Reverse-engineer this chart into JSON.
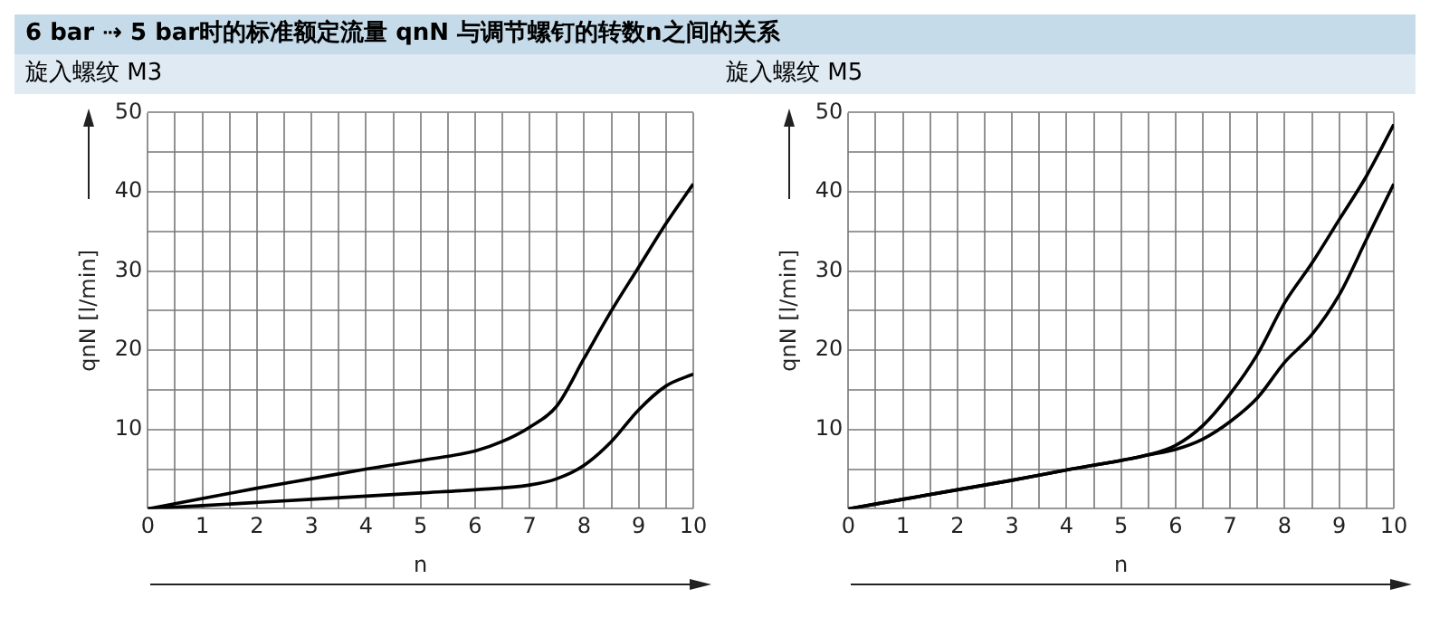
{
  "chart_data": [
    {
      "type": "line",
      "title": "6 bar ⇢ 5 bar时的标准额定流量 qnN 与调节螺钉的转数n之间的关系",
      "subtitle": "旋入螺纹 M3",
      "xlabel": "n",
      "ylabel": "qnN [l/min]",
      "grid": true,
      "legend": false,
      "marker": "none",
      "line_style": "solid",
      "xlim": [
        0,
        10
      ],
      "ylim": [
        0,
        50
      ],
      "xticks": [
        0,
        {
          "value": 0.5,
          "label": null
        },
        1,
        {
          "value": 1.5,
          "label": null
        },
        2,
        {
          "value": 2.5,
          "label": null
        },
        3,
        {
          "value": 3.5,
          "label": null
        },
        4,
        {
          "value": 4.5,
          "label": null
        },
        5,
        {
          "value": 5.5,
          "label": null
        },
        6,
        {
          "value": 6.5,
          "label": null
        },
        7,
        {
          "value": 7.5,
          "label": null
        },
        8,
        {
          "value": 8.5,
          "label": null
        },
        9,
        {
          "value": 9.5,
          "label": null
        },
        10
      ],
      "yticks": [
        {
          "value": 0,
          "label": null
        },
        {
          "value": 5,
          "label": null
        },
        10,
        {
          "value": 15,
          "label": null
        },
        20,
        {
          "value": 25,
          "label": null
        },
        30,
        {
          "value": 35,
          "label": null
        },
        40,
        {
          "value": 45,
          "label": null
        },
        50
      ],
      "series": [
        {
          "color": "#000000",
          "x": [
            0,
            1,
            2,
            3,
            4,
            5,
            6,
            6.5,
            7,
            7.5,
            8,
            8.5,
            9,
            9.5,
            10
          ],
          "values": [
            0,
            1.3,
            2.6,
            3.8,
            5,
            6.1,
            7.3,
            8.5,
            10.3,
            13,
            19,
            25,
            30.5,
            36,
            41
          ]
        },
        {
          "color": "#000000",
          "x": [
            0,
            1,
            2,
            3,
            4,
            5,
            6,
            7,
            7.5,
            8,
            8.5,
            9,
            9.5,
            10
          ],
          "values": [
            0,
            0.4,
            0.8,
            1.2,
            1.6,
            2,
            2.4,
            3,
            3.8,
            5.5,
            8.5,
            12.5,
            15.5,
            17
          ]
        }
      ]
    },
    {
      "type": "line",
      "subtitle": "旋入螺纹 M5",
      "xlabel": "n",
      "ylabel": "qnN [l/min]",
      "grid": true,
      "legend": false,
      "marker": "none",
      "line_style": "solid",
      "xlim": [
        0,
        10
      ],
      "ylim": [
        0,
        50
      ],
      "xticks": [
        0,
        {
          "value": 0.5,
          "label": null
        },
        1,
        {
          "value": 1.5,
          "label": null
        },
        2,
        {
          "value": 2.5,
          "label": null
        },
        3,
        {
          "value": 3.5,
          "label": null
        },
        4,
        {
          "value": 4.5,
          "label": null
        },
        5,
        {
          "value": 5.5,
          "label": null
        },
        6,
        {
          "value": 6.5,
          "label": null
        },
        7,
        {
          "value": 7.5,
          "label": null
        },
        8,
        {
          "value": 8.5,
          "label": null
        },
        9,
        {
          "value": 9.5,
          "label": null
        },
        10
      ],
      "yticks": [
        {
          "value": 0,
          "label": null
        },
        {
          "value": 5,
          "label": null
        },
        10,
        {
          "value": 15,
          "label": null
        },
        20,
        {
          "value": 25,
          "label": null
        },
        30,
        {
          "value": 35,
          "label": null
        },
        40,
        {
          "value": 45,
          "label": null
        },
        50
      ],
      "series": [
        {
          "color": "#000000",
          "x": [
            0,
            1,
            2,
            3,
            4,
            5,
            5.5,
            6,
            6.5,
            7,
            7.5,
            8,
            8.5,
            9,
            9.5,
            10
          ],
          "values": [
            0,
            1.2,
            2.4,
            3.6,
            4.9,
            6.1,
            6.8,
            8,
            10.5,
            14.5,
            19.5,
            26,
            31,
            36.5,
            42,
            48.5
          ]
        },
        {
          "color": "#000000",
          "x": [
            0,
            1,
            2,
            3,
            4,
            5,
            5.5,
            6,
            6.5,
            7,
            7.5,
            8,
            8.5,
            9,
            9.5,
            10
          ],
          "values": [
            0,
            1.2,
            2.4,
            3.6,
            4.9,
            6.1,
            6.8,
            7.5,
            8.8,
            11,
            14,
            18.5,
            22,
            27,
            34,
            41
          ]
        }
      ]
    }
  ]
}
